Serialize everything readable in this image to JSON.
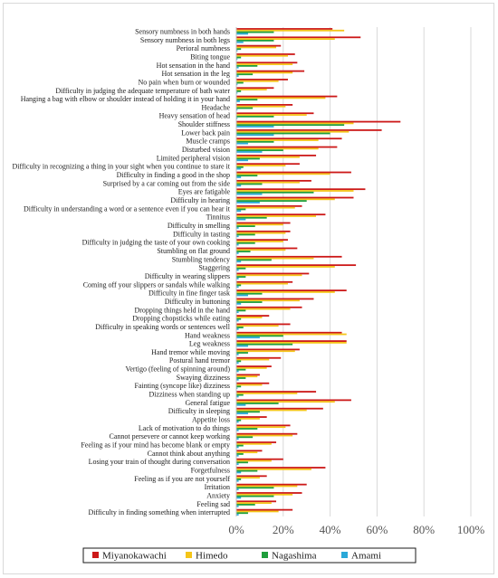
{
  "chart_data": {
    "type": "bar",
    "orientation": "horizontal",
    "categories": [
      "Sensory numbness in both hands",
      "Sensory numbness in both legs",
      "Perioral numbness",
      "Biting tongue",
      "Hot sensation in the hand",
      "Hot sensation in the leg",
      "No pain when burn or wounded",
      "Difficulty in judging the adequate temperature of bath water",
      "Hanging a bag with elbow or shoulder instead of holding it in your hand",
      "Headache",
      "Heavy sensation of head",
      "Shoulder stiffness",
      "Lower back pain",
      "Muscle cramps",
      "Disturbed vision",
      "Limited peripheral vision",
      "Difficulty in recognizing a thing in your sight when you continue to stare it",
      "Difficulty in finding a good in the shop",
      "Surprised by a car coming out from the side",
      "Eyes are fatigable",
      "Difficulty in hearing",
      "Difficulty in understanding a word or a sentence even if you can hear it",
      "Tinnitus",
      "Difficulty in smelling",
      "Difficulty in tasting",
      "Difficulty in judging the taste of your own cooking",
      "Stumbling on flat ground",
      "Stumbling tendency",
      "Staggering",
      "Difficulty in wearing slippers",
      "Coming off your slippers or sandals while walking",
      "Difficulty in fine finger task",
      "Difficulty in buttoning",
      "Dropping things held in the hand",
      "Dropping chopsticks while eating",
      "Difficulty in speaking words or sentences well",
      "Hand weakness",
      "Leg weakness",
      "Hand tremor while moving",
      "Postural hand tremor",
      "Vertigo (feeling of spinning around)",
      "Swaying dizziness",
      "Fainting (syncope like) dizziness",
      "Dizziness when standing up",
      "General fatigue",
      "Difficulty in sleeping",
      "Appetite loss",
      "Lack of motivation to do things",
      "Cannot persevere or cannot keep working",
      "Feeling as if your mind has become blank or empty",
      "Cannot think about anything",
      "Losing your train of thought during conversation",
      "Forgetfulness",
      "Feeling as if you are not yourself",
      "Irritation",
      "Anxiety",
      "Feeling sad",
      "Difficulty in finding something when interrupted"
    ],
    "series": [
      {
        "name": "Miyanokawachi",
        "color": "#cc1818",
        "values": [
          41,
          53,
          19,
          25,
          26,
          29,
          22,
          16,
          43,
          24,
          33,
          70,
          62,
          45,
          43,
          34,
          27,
          49,
          32,
          55,
          50,
          28,
          38,
          23,
          23,
          22,
          26,
          45,
          51,
          31,
          24,
          47,
          33,
          28,
          14,
          23,
          45,
          47,
          27,
          19,
          15,
          10,
          14,
          34,
          49,
          37,
          13,
          23,
          26,
          17,
          11,
          20,
          38,
          13,
          30,
          28,
          17,
          24
        ]
      },
      {
        "name": "Himedo",
        "color": "#f5c518",
        "values": [
          46,
          42,
          17,
          22,
          24,
          24,
          18,
          13,
          38,
          21,
          30,
          50,
          48,
          35,
          35,
          27,
          21,
          40,
          27,
          50,
          42,
          25,
          34,
          20,
          21,
          20,
          21,
          33,
          42,
          28,
          22,
          42,
          27,
          23,
          11,
          18,
          47,
          47,
          25,
          14,
          13,
          9,
          11,
          26,
          42,
          30,
          10,
          21,
          24,
          15,
          9,
          15,
          32,
          10,
          26,
          24,
          15,
          18
        ]
      },
      {
        "name": "Nagashima",
        "color": "#1f9e3c",
        "values": [
          16,
          16,
          2,
          2,
          9,
          7,
          3,
          2,
          9,
          7,
          16,
          46,
          40,
          16,
          20,
          10,
          3,
          9,
          11,
          33,
          30,
          4,
          13,
          8,
          8,
          8,
          6,
          15,
          4,
          4,
          2,
          11,
          11,
          4,
          2,
          3,
          20,
          24,
          5,
          2,
          4,
          4,
          2,
          3,
          18,
          10,
          2,
          9,
          7,
          3,
          3,
          5,
          9,
          2,
          16,
          16,
          8,
          5
        ]
      },
      {
        "name": "Amami",
        "color": "#2aa8d8",
        "values": [
          5,
          3,
          0.5,
          0.5,
          1,
          1,
          0.5,
          0.5,
          1.5,
          0.5,
          0.5,
          16,
          16,
          5,
          11,
          5,
          2,
          2,
          2,
          11,
          10,
          2,
          4,
          1,
          1,
          1,
          1,
          2,
          1,
          1,
          1,
          5,
          2,
          1,
          1,
          1,
          10,
          5,
          1,
          1,
          1,
          1,
          0.5,
          1,
          4,
          5,
          1,
          1,
          1,
          1,
          1,
          1,
          2,
          1,
          1,
          2,
          1,
          1
        ]
      }
    ],
    "x_ticks": [
      "0%",
      "20%",
      "40%",
      "60%",
      "80%",
      "100%"
    ],
    "xlim": [
      0,
      100
    ],
    "grid": true,
    "legend": "bottom"
  }
}
